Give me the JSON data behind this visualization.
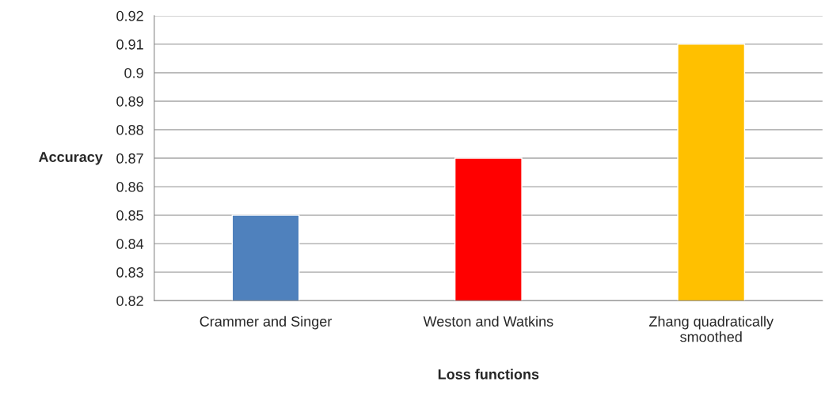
{
  "chart_data": {
    "type": "bar",
    "xlabel": "Loss functions",
    "ylabel": "Accuracy",
    "categories": [
      "Crammer and Singer",
      "Weston and Watkins",
      "Zhang quadratically\nsmoothed"
    ],
    "values": [
      0.85,
      0.87,
      0.91
    ],
    "colors": [
      "#4f81bd",
      "#ff0000",
      "#ffc000"
    ],
    "ylim": [
      0.82,
      0.92
    ],
    "yticks": [
      0.82,
      0.83,
      0.84,
      0.85,
      0.86,
      0.87,
      0.88,
      0.89,
      0.9,
      0.91,
      0.92
    ],
    "grid": "y",
    "legend": false
  }
}
